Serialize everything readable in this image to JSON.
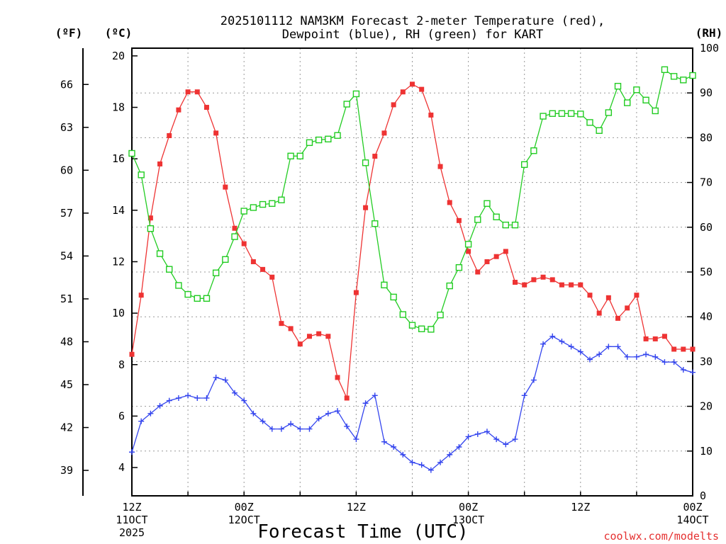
{
  "chart_data": {
    "type": "line",
    "title": [
      "2025101112 NAM3KM Forecast 2-meter Temperature (red),",
      "Dewpoint (blue), RH (green) for KART"
    ],
    "xlabel": "Forecast Time (UTC)",
    "credit": "coolwx.com/modelts",
    "units": {
      "f": "(ºF)",
      "c": "(ºC)",
      "rh": "(RH)"
    },
    "x_range": [
      0,
      60
    ],
    "x_ticks": [
      {
        "x": 0,
        "lines": [
          "12Z",
          "11OCT",
          "2025"
        ]
      },
      {
        "x": 12,
        "lines": [
          "00Z",
          "12OCT"
        ]
      },
      {
        "x": 24,
        "lines": [
          "12Z",
          ""
        ]
      },
      {
        "x": 36,
        "lines": [
          "00Z",
          "13OCT"
        ]
      },
      {
        "x": 48,
        "lines": [
          "12Z",
          ""
        ]
      },
      {
        "x": 60,
        "lines": [
          "00Z",
          "14OCT"
        ]
      }
    ],
    "c_range": [
      2.9,
      20.3
    ],
    "c_ticks": [
      4,
      6,
      8,
      10,
      12,
      14,
      16,
      18,
      20
    ],
    "f_ticks": [
      39,
      42,
      45,
      48,
      51,
      54,
      57,
      60,
      63,
      66
    ],
    "rh_range": [
      0,
      100
    ],
    "rh_ticks": [
      0,
      10,
      20,
      30,
      40,
      50,
      60,
      70,
      80,
      90,
      100
    ],
    "series": [
      {
        "name": "Temperature",
        "unit": "C",
        "color": "#ee3333",
        "marker": "filled-square",
        "x": [
          0,
          1,
          2,
          3,
          4,
          5,
          6,
          7,
          8,
          9,
          10,
          11,
          12,
          13,
          14,
          15,
          16,
          17,
          18,
          19,
          20,
          21,
          22,
          23,
          24,
          25,
          26,
          27,
          28,
          29,
          30,
          31,
          32,
          33,
          34,
          35,
          36,
          37,
          38,
          39,
          40,
          41,
          42,
          43,
          44,
          45,
          46,
          47,
          48,
          49,
          50,
          51,
          52,
          53,
          54,
          55,
          56,
          57,
          58,
          59,
          60
        ],
        "values": [
          8.4,
          10.7,
          13.7,
          15.8,
          16.9,
          17.9,
          18.6,
          18.6,
          18.0,
          17.0,
          14.9,
          13.3,
          12.7,
          12.0,
          11.7,
          11.4,
          9.6,
          9.4,
          8.8,
          9.1,
          9.2,
          9.1,
          7.5,
          6.7,
          10.8,
          14.1,
          16.1,
          17.0,
          18.1,
          18.6,
          18.9,
          18.7,
          17.7,
          15.7,
          14.3,
          13.6,
          12.4,
          11.6,
          12.0,
          12.2,
          12.4,
          11.2,
          11.1,
          11.3,
          11.4,
          11.3,
          11.1,
          11.1,
          11.1,
          10.7,
          10.0,
          10.6,
          9.8,
          10.2,
          10.7,
          9.0,
          9.0,
          9.1,
          8.6,
          8.6,
          8.6
        ]
      },
      {
        "name": "Dewpoint",
        "unit": "C",
        "color": "#3344ee",
        "marker": "plus",
        "x": [
          0,
          1,
          2,
          3,
          4,
          5,
          6,
          7,
          8,
          9,
          10,
          11,
          12,
          13,
          14,
          15,
          16,
          17,
          18,
          19,
          20,
          21,
          22,
          23,
          24,
          25,
          26,
          27,
          28,
          29,
          30,
          31,
          32,
          33,
          34,
          35,
          36,
          37,
          38,
          39,
          40,
          41,
          42,
          43,
          44,
          45,
          46,
          47,
          48,
          49,
          50,
          51,
          52,
          53,
          54,
          55,
          56,
          57,
          58,
          59,
          60
        ],
        "values": [
          4.6,
          5.8,
          6.1,
          6.4,
          6.6,
          6.7,
          6.8,
          6.7,
          6.7,
          7.5,
          7.4,
          6.9,
          6.6,
          6.1,
          5.8,
          5.5,
          5.5,
          5.7,
          5.5,
          5.5,
          5.9,
          6.1,
          6.2,
          5.6,
          5.1,
          6.5,
          6.8,
          5.0,
          4.8,
          4.5,
          4.2,
          4.1,
          3.9,
          4.2,
          4.5,
          4.8,
          5.2,
          5.3,
          5.4,
          5.1,
          4.9,
          5.1,
          6.8,
          7.4,
          8.8,
          9.1,
          8.9,
          8.7,
          8.5,
          8.2,
          8.4,
          8.7,
          8.7,
          8.3,
          8.3,
          8.4,
          8.3,
          8.1,
          8.1,
          7.8,
          7.7
        ]
      },
      {
        "name": "RH",
        "unit": "%",
        "color": "#22cc22",
        "marker": "open-square",
        "x": [
          0,
          1,
          2,
          3,
          4,
          5,
          6,
          7,
          8,
          9,
          10,
          11,
          12,
          13,
          14,
          15,
          16,
          17,
          18,
          19,
          20,
          21,
          22,
          23,
          24,
          25,
          26,
          27,
          28,
          29,
          30,
          31,
          32,
          33,
          34,
          35,
          36,
          37,
          38,
          39,
          40,
          41,
          42,
          43,
          44,
          45,
          46,
          47,
          48,
          49,
          50,
          51,
          52,
          53,
          54,
          55,
          56,
          57,
          58,
          59,
          60
        ],
        "values": [
          76.5,
          71.7,
          59.7,
          54.1,
          50.6,
          47.0,
          45.0,
          44.1,
          44.1,
          49.8,
          52.8,
          57.9,
          63.6,
          64.4,
          65.1,
          65.3,
          66.1,
          75.9,
          75.9,
          78.9,
          79.5,
          79.7,
          80.5,
          87.5,
          89.8,
          74.4,
          60.8,
          47.1,
          44.4,
          40.5,
          38.1,
          37.3,
          37.2,
          40.4,
          46.9,
          51.0,
          56.2,
          61.7,
          65.3,
          62.3,
          60.5,
          60.5,
          74.0,
          77.1,
          84.8,
          85.4,
          85.4,
          85.4,
          85.3,
          83.4,
          81.6,
          85.6,
          91.5,
          87.8,
          90.7,
          88.4,
          86.0,
          95.2,
          93.7,
          92.9,
          93.9
        ]
      }
    ]
  }
}
